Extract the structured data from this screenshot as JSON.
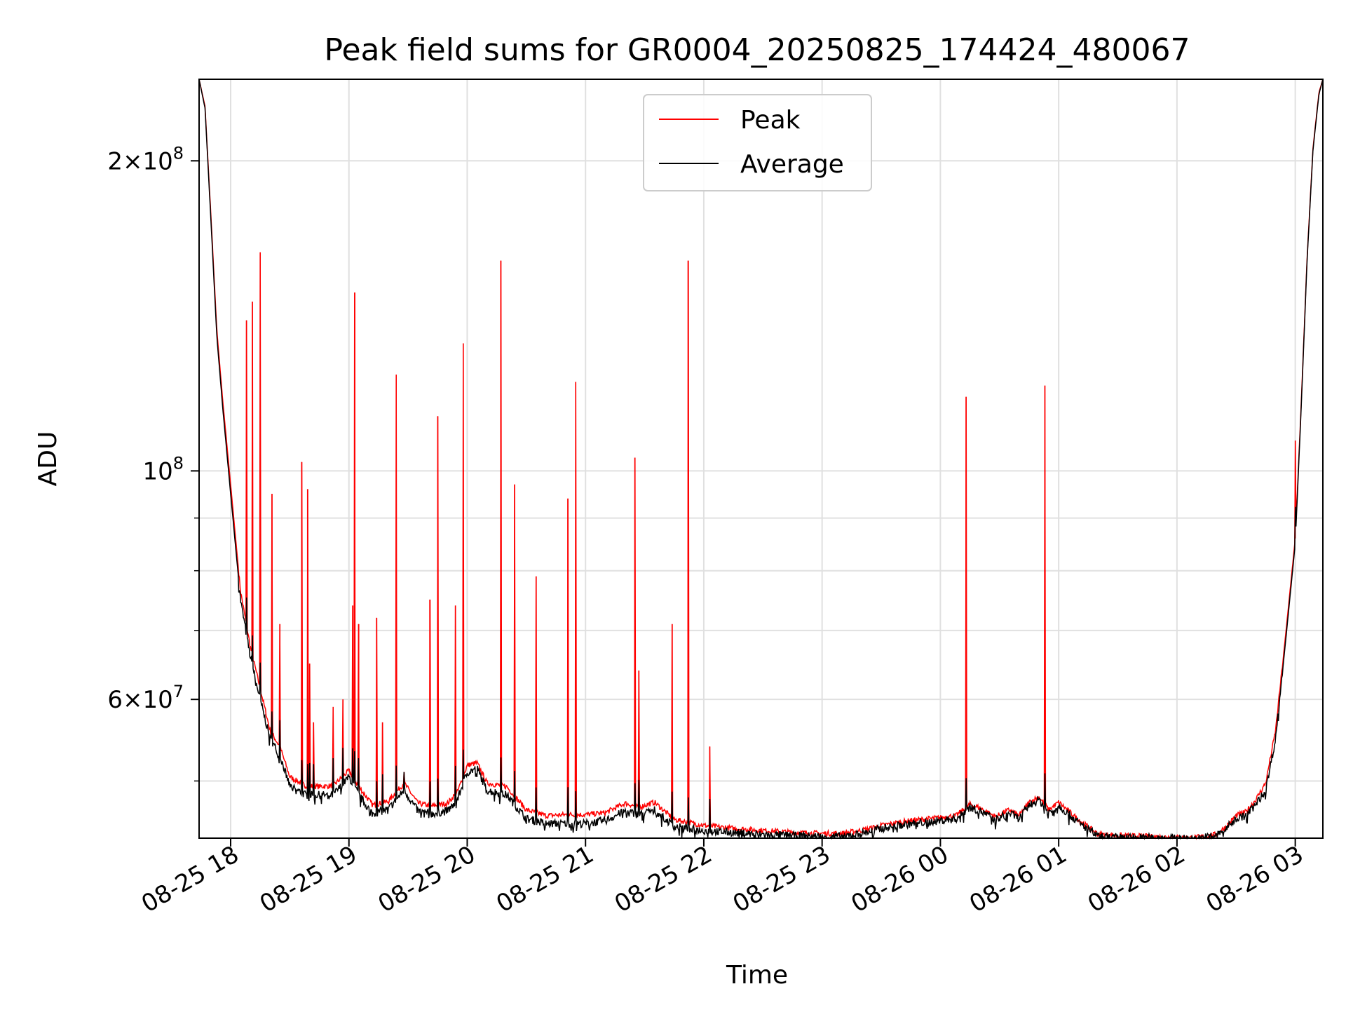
{
  "chart_data": {
    "type": "line",
    "title": "Peak field sums for GR0004_20250825_174424_480067",
    "xlabel": "Time",
    "ylabel": "ADU",
    "y_scale": "log",
    "x_range": [
      "08-25 17:44",
      "08-26 03:14"
    ],
    "ylim": [
      44000000,
      240000000
    ],
    "grid": true,
    "legend_position": "upper center",
    "x_ticks": [
      "08-25 18",
      "08-25 19",
      "08-25 20",
      "08-25 21",
      "08-25 22",
      "08-25 23",
      "08-26 00",
      "08-26 01",
      "08-26 02",
      "08-26 03"
    ],
    "y_ticks": [
      {
        "value": 60000000,
        "mantissa": "6",
        "exponent": "7"
      },
      {
        "value": 100000000,
        "mantissa": "",
        "exponent": "8"
      },
      {
        "value": 200000000,
        "mantissa": "2",
        "exponent": "8"
      }
    ],
    "series": [
      {
        "name": "Peak",
        "color": "#ff0000"
      },
      {
        "name": "Average",
        "color": "#000000"
      }
    ],
    "baseline_x": [
      "08-25 17:44",
      "08-25 17:47",
      "08-25 17:50",
      "08-25 17:53",
      "08-25 17:56",
      "08-25 18:00",
      "08-25 18:05",
      "08-25 18:10",
      "08-25 18:15",
      "08-25 18:20",
      "08-25 18:25",
      "08-25 18:30",
      "08-25 18:38",
      "08-25 18:45",
      "08-25 18:52",
      "08-25 19:00",
      "08-25 19:05",
      "08-25 19:12",
      "08-25 19:20",
      "08-25 19:28",
      "08-25 19:35",
      "08-25 19:42",
      "08-25 19:50",
      "08-25 19:55",
      "08-25 20:00",
      "08-25 20:05",
      "08-25 20:10",
      "08-25 20:20",
      "08-25 20:30",
      "08-25 20:40",
      "08-25 20:50",
      "08-25 21:00",
      "08-25 21:10",
      "08-25 21:20",
      "08-25 21:27",
      "08-25 21:35",
      "08-25 21:45",
      "08-25 22:00",
      "08-25 22:15",
      "08-25 22:30",
      "08-25 22:45",
      "08-25 23:00",
      "08-25 23:10",
      "08-25 23:20",
      "08-25 23:30",
      "08-25 23:45",
      "08-26 00:00",
      "08-26 00:08",
      "08-26 00:15",
      "08-26 00:20",
      "08-26 00:28",
      "08-26 00:35",
      "08-26 00:40",
      "08-26 00:45",
      "08-26 00:50",
      "08-26 00:55",
      "08-26 01:00",
      "08-26 01:10",
      "08-26 01:20",
      "08-26 01:30",
      "08-26 01:45",
      "08-26 02:00",
      "08-26 02:10",
      "08-26 02:20",
      "08-26 02:25",
      "08-26 02:30",
      "08-26 02:35",
      "08-26 02:40",
      "08-26 02:45",
      "08-26 02:50",
      "08-26 02:55",
      "08-26 03:00",
      "08-26 03:03",
      "08-26 03:06",
      "08-26 03:09",
      "08-26 03:12",
      "08-26 03:14"
    ],
    "average_values": [
      240000000,
      225000000,
      175000000,
      135000000,
      115000000,
      95000000,
      75000000,
      66000000,
      60000000,
      55000000,
      53000000,
      49500000,
      48500000,
      48500000,
      48500000,
      50500000,
      48500000,
      46500000,
      47000000,
      49000000,
      46800000,
      46500000,
      46800000,
      48000000,
      51000000,
      51500000,
      49000000,
      48500000,
      46000000,
      45500000,
      45500000,
      45500000,
      45800000,
      46800000,
      46400000,
      46900000,
      45200000,
      44800000,
      44600000,
      44400000,
      44300000,
      44200000,
      44200000,
      44500000,
      45000000,
      45500000,
      45800000,
      46000000,
      47200000,
      46800000,
      45900000,
      46600000,
      46000000,
      47400000,
      48000000,
      46600000,
      47400000,
      45600000,
      44200000,
      44100000,
      44100000,
      44000000,
      44000000,
      44300000,
      45000000,
      46000000,
      46300000,
      47500000,
      49000000,
      55000000,
      68000000,
      85000000,
      115000000,
      160000000,
      205000000,
      232000000,
      240000000
    ],
    "peak_values": [
      240000000,
      226000000,
      177000000,
      137000000,
      117000000,
      97000000,
      76500000,
      67500000,
      61500000,
      56000000,
      54000000,
      50500000,
      49500000,
      49400000,
      49500000,
      51200000,
      49400000,
      47400000,
      47800000,
      49800000,
      47600000,
      47300000,
      47600000,
      48800000,
      51800000,
      52100000,
      49800000,
      49400000,
      46900000,
      46300000,
      46400000,
      46400000,
      46600000,
      47600000,
      47200000,
      47700000,
      45900000,
      45300000,
      45000000,
      44800000,
      44600000,
      44500000,
      44500000,
      44800000,
      45300000,
      45800000,
      46100000,
      46300000,
      47500000,
      47100000,
      46200000,
      46900000,
      46300000,
      47700000,
      48300000,
      46900000,
      47700000,
      45900000,
      44400000,
      44300000,
      44200000,
      44100000,
      44100000,
      44400000,
      45200000,
      46300000,
      46700000,
      48000000,
      49800000,
      56000000,
      69000000,
      86000000,
      116000000,
      161000000,
      206000000,
      233000000,
      240000000
    ],
    "peak_spikes": [
      {
        "x": "08-25 18:08",
        "y": 140000000
      },
      {
        "x": "08-25 18:11",
        "y": 146000000
      },
      {
        "x": "08-25 18:15",
        "y": 163000000
      },
      {
        "x": "08-25 18:21",
        "y": 95000000
      },
      {
        "x": "08-25 18:25",
        "y": 71000000
      },
      {
        "x": "08-25 18:36",
        "y": 102000000
      },
      {
        "x": "08-25 18:39",
        "y": 96000000
      },
      {
        "x": "08-25 18:40",
        "y": 65000000
      },
      {
        "x": "08-25 18:42",
        "y": 57000000
      },
      {
        "x": "08-25 18:52",
        "y": 59000000
      },
      {
        "x": "08-25 18:57",
        "y": 60000000
      },
      {
        "x": "08-25 19:02",
        "y": 74000000
      },
      {
        "x": "08-25 19:03",
        "y": 149000000
      },
      {
        "x": "08-25 19:05",
        "y": 71000000
      },
      {
        "x": "08-25 19:14",
        "y": 72000000
      },
      {
        "x": "08-25 19:17",
        "y": 57000000
      },
      {
        "x": "08-25 19:24",
        "y": 124000000
      },
      {
        "x": "08-25 19:28",
        "y": 51000000
      },
      {
        "x": "08-25 19:41",
        "y": 75000000
      },
      {
        "x": "08-25 19:45",
        "y": 113000000
      },
      {
        "x": "08-25 19:54",
        "y": 74000000
      },
      {
        "x": "08-25 19:58",
        "y": 133000000
      },
      {
        "x": "08-25 20:17",
        "y": 160000000
      },
      {
        "x": "08-25 20:24",
        "y": 97000000
      },
      {
        "x": "08-25 20:35",
        "y": 79000000
      },
      {
        "x": "08-25 20:51",
        "y": 94000000
      },
      {
        "x": "08-25 20:55",
        "y": 122000000
      },
      {
        "x": "08-25 21:25",
        "y": 103000000
      },
      {
        "x": "08-25 21:27",
        "y": 64000000
      },
      {
        "x": "08-25 21:44",
        "y": 71000000
      },
      {
        "x": "08-25 21:52",
        "y": 160000000
      },
      {
        "x": "08-25 22:03",
        "y": 54000000
      },
      {
        "x": "08-26 00:13",
        "y": 118000000
      },
      {
        "x": "08-26 00:53",
        "y": 121000000
      },
      {
        "x": "08-26 03:00",
        "y": 107000000
      }
    ]
  }
}
